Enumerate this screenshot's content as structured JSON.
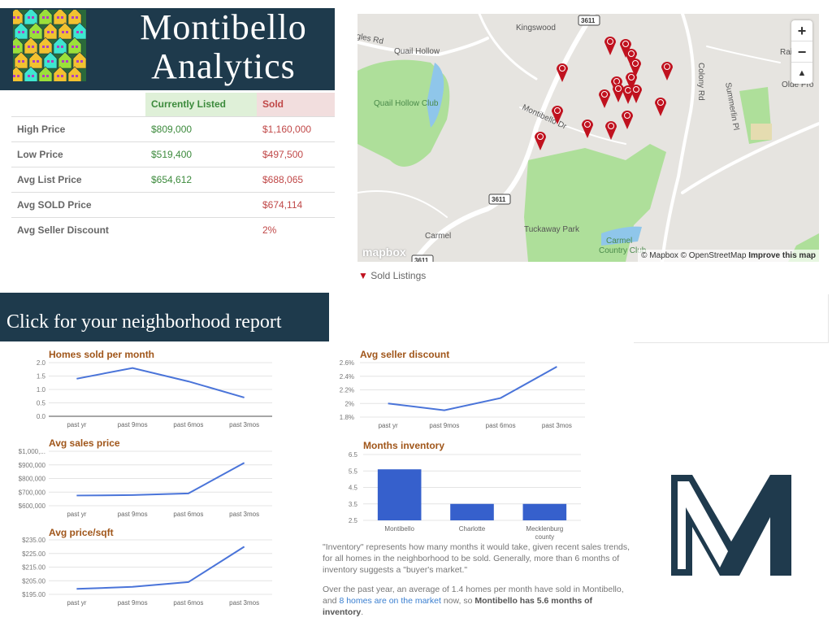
{
  "header": {
    "title_line1": "Montibello",
    "title_line2": "Analytics"
  },
  "table": {
    "columns": [
      "",
      "Currently Listed",
      "Sold"
    ],
    "rows": [
      {
        "label": "High Price",
        "listed": "$809,000",
        "sold": "$1,160,000"
      },
      {
        "label": "Low Price",
        "listed": "$519,400",
        "sold": "$497,500"
      },
      {
        "label": "Avg List Price",
        "listed": "$654,612",
        "sold": "$688,065"
      },
      {
        "label": "Avg SOLD Price",
        "listed": "",
        "sold": "$674,114"
      },
      {
        "label": "Avg Seller Discount",
        "listed": "",
        "sold": "2%"
      }
    ],
    "colors": {
      "listed_bg": "#dff0d8",
      "listed_text": "#3c8a3c",
      "sold_bg": "#f2dede",
      "sold_text": "#c04848"
    }
  },
  "banner": {
    "text": "Click for your neighborhood report"
  },
  "map": {
    "labels": [
      "Kingswood",
      "Quail Hollow",
      "gles Rd",
      "Quail Hollow Club",
      "Montibello Dr",
      "Colony Rd",
      "Summerlin Pl",
      "Raintr",
      "Olde Pro",
      "Tuckaway Park",
      "Carmel",
      "Carmel",
      "Country Club",
      "3611",
      "3611",
      "3611"
    ],
    "zoom_in": "+",
    "zoom_out": "−",
    "compass": "▲",
    "attribution": "© Mapbox © OpenStreetMap",
    "improve": "Improve this map",
    "logo": "mapbox",
    "pin_color": "#c0121f"
  },
  "legend": {
    "label": "Sold Listings",
    "icon": "map-pin-icon"
  },
  "chart_data": [
    {
      "type": "line",
      "title": "Homes sold per month",
      "categories": [
        "past yr",
        "past 9mos",
        "past 6mos",
        "past 3mos"
      ],
      "values": [
        1.4,
        1.8,
        1.3,
        0.7
      ],
      "yticks": [
        "0.0",
        "0.5",
        "1.0",
        "1.5",
        "2.0"
      ],
      "ylim": [
        0,
        2
      ],
      "color": "#4a74d9",
      "grid": true
    },
    {
      "type": "line",
      "title": "Avg sales price",
      "categories": [
        "past yr",
        "past 9mos",
        "past 6mos",
        "past 3mos"
      ],
      "values": [
        675000,
        678000,
        690000,
        915000
      ],
      "yticks": [
        "$600,000",
        "$700,000",
        "$800,000",
        "$900,000",
        "$1,000,..."
      ],
      "ylim": [
        600000,
        1000000
      ],
      "color": "#4a74d9",
      "grid": true
    },
    {
      "type": "line",
      "title": "Avg price/sqft",
      "categories": [
        "past yr",
        "past 9mos",
        "past 6mos",
        "past 3mos"
      ],
      "values": [
        199,
        200.5,
        204,
        230
      ],
      "yticks": [
        "$195.00",
        "$205.00",
        "$215.00",
        "$225.00",
        "$235.00"
      ],
      "ylim": [
        195,
        235
      ],
      "color": "#4a74d9",
      "grid": true
    },
    {
      "type": "line",
      "title": "Avg seller discount",
      "categories": [
        "past yr",
        "past 9mos",
        "past 6mos",
        "past 3mos"
      ],
      "values": [
        2.0,
        1.9,
        2.08,
        2.54
      ],
      "yticks": [
        "1.8%",
        "2%",
        "2.2%",
        "2.4%",
        "2.6%"
      ],
      "ylim": [
        1.8,
        2.6
      ],
      "color": "#4a74d9",
      "grid": true
    },
    {
      "type": "bar",
      "title": "Months inventory",
      "categories": [
        "Montibello",
        "Charlotte",
        "Mecklenburg county"
      ],
      "values": [
        5.6,
        3.5,
        3.5
      ],
      "yticks": [
        "2.5",
        "3.5",
        "4.5",
        "5.5",
        "6.5"
      ],
      "ylim": [
        2.5,
        6.5
      ],
      "color": "#3660cc",
      "grid": true
    }
  ],
  "paragraph": {
    "p1": "\"Inventory\" represents how many months it would take, given recent sales trends, for all homes in the neighborhood to be sold. Generally, more than 6 months of inventory suggests a \"buyer's market.\"",
    "p2_a": "Over the past year, an average of 1.4 homes per month have sold in Montibello, and ",
    "p2_link": "8 homes are on the market",
    "p2_b": " now, so ",
    "p2_bold": "Montibello has 5.6 months of inventory",
    "p2_end": "."
  },
  "colors": {
    "navy": "#1e3a4c",
    "chart_title": "#a0561a"
  }
}
